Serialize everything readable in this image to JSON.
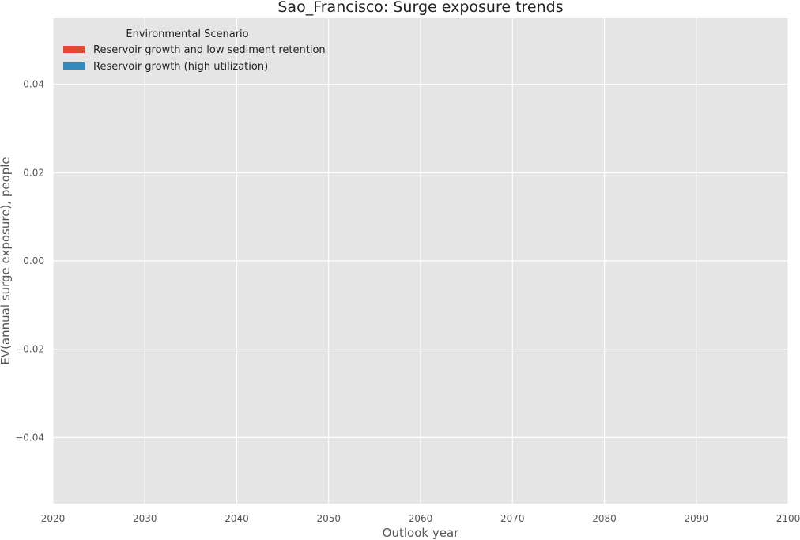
{
  "chart_data": {
    "type": "area",
    "title": "Sao_Francisco: Surge exposure trends",
    "xlabel": "Outlook year",
    "ylabel": "EV(annual surge exposure), people",
    "xlim": [
      2020,
      2100
    ],
    "ylim": [
      -0.055,
      0.055
    ],
    "x_ticks": [
      2020,
      2030,
      2040,
      2050,
      2060,
      2070,
      2080,
      2090,
      2100
    ],
    "y_ticks": [
      0.04,
      0.02,
      0.0,
      -0.02,
      -0.04
    ],
    "y_tick_labels": [
      "0.04",
      "0.02",
      "0.00",
      "−0.02",
      "−0.04"
    ],
    "grid": true,
    "background": "#E5E5E5",
    "grid_color": "#FFFFFF",
    "legend": {
      "title": "Environmental Scenario",
      "placement": "top-left",
      "entries": [
        {
          "label": "Reservoir growth and low sediment retention",
          "color": "#E24A33"
        },
        {
          "label": "Reservoir growth (high utilization)",
          "color": "#348ABD"
        }
      ]
    },
    "series": [
      {
        "name": "Reservoir growth and low sediment retention",
        "color": "#E24A33",
        "x": [],
        "values": []
      },
      {
        "name": "Reservoir growth (high utilization)",
        "color": "#348ABD",
        "x": [],
        "values": []
      }
    ]
  }
}
